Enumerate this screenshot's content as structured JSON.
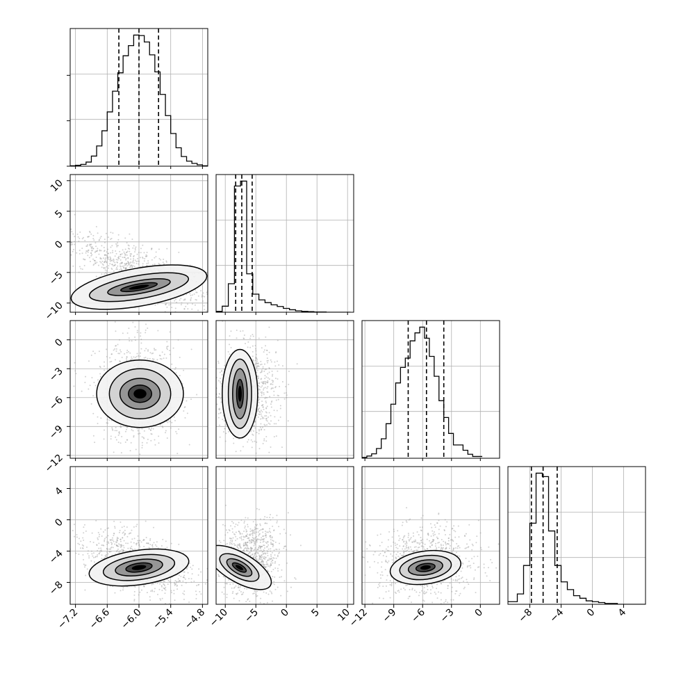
{
  "chart_data": {
    "type": "corner",
    "title": "",
    "parameters": [
      {
        "index": 0,
        "range": [
          -7.3,
          -4.7
        ],
        "ticks": [
          -7.2,
          -6.6,
          -6.0,
          -5.4,
          -4.8
        ],
        "tick_labels": [
          "−7.2",
          "−6.6",
          "−6.0",
          "−5.4",
          "−4.8"
        ],
        "quantiles": [
          -6.38,
          -6.0,
          -5.63
        ],
        "mode": -6.0
      },
      {
        "index": 1,
        "range": [
          -11.5,
          11.0
        ],
        "ticks": [
          -10,
          -5,
          0,
          5,
          10
        ],
        "tick_labels": [
          "−10",
          "−5",
          "0",
          "5",
          "10"
        ],
        "quantiles": [
          -8.3,
          -7.3,
          -5.6
        ],
        "mode": -7.5
      },
      {
        "index": 2,
        "range": [
          -12.3,
          2.0
        ],
        "ticks": [
          -12,
          -9,
          -6,
          -3,
          0
        ],
        "tick_labels": [
          "−12",
          "−9",
          "−6",
          "−3",
          "0"
        ],
        "quantiles": [
          -7.5,
          -5.6,
          -3.8
        ],
        "mode": -5.6
      },
      {
        "index": 3,
        "range": [
          -10.8,
          6.8
        ],
        "ticks": [
          -8,
          -4,
          0,
          4
        ],
        "tick_labels": [
          "−8",
          "−4",
          "0",
          "4"
        ],
        "quantiles": [
          -7.8,
          -6.3,
          -4.5
        ],
        "mode": -6.2
      }
    ],
    "histograms": [
      {
        "parameter": 0,
        "bin_edges": [
          -7.3,
          -7.2,
          -7.1,
          -7.0,
          -6.9,
          -6.8,
          -6.7,
          -6.6,
          -6.5,
          -6.4,
          -6.3,
          -6.2,
          -6.1,
          -6.0,
          -5.9,
          -5.8,
          -5.7,
          -5.6,
          -5.5,
          -5.4,
          -5.3,
          -5.2,
          -5.1,
          -5.0,
          -4.9,
          -4.8,
          -4.7
        ],
        "counts": [
          1,
          2,
          4,
          9,
          22,
          44,
          77,
          118,
          163,
          203,
          240,
          262,
          285,
          284,
          270,
          242,
          205,
          156,
          110,
          71,
          40,
          21,
          11,
          6,
          3,
          1
        ]
      },
      {
        "parameter": 1,
        "bin_edges": [
          -11.5,
          -10.5,
          -9.5,
          -8.5,
          -7.5,
          -6.5,
          -5.5,
          -4.5,
          -3.5,
          -2.5,
          -1.5,
          -0.5,
          0.5,
          1.5,
          2.5,
          3.5,
          4.5,
          5.5,
          6.5,
          7.5,
          8.5,
          9.5,
          10.5
        ],
        "counts": [
          3,
          22,
          104,
          460,
          478,
          140,
          66,
          45,
          35,
          27,
          21,
          14,
          9,
          5,
          3,
          2,
          1,
          1,
          0,
          0,
          0,
          0
        ]
      },
      {
        "parameter": 2,
        "bin_edges": [
          -12.3,
          -11.8,
          -11.3,
          -10.8,
          -10.3,
          -9.8,
          -9.3,
          -8.8,
          -8.3,
          -7.8,
          -7.3,
          -6.8,
          -6.3,
          -5.8,
          -5.3,
          -4.8,
          -4.3,
          -3.8,
          -3.3,
          -2.8,
          -1.8,
          -1.3,
          -0.8,
          0.2
        ],
        "counts": [
          2,
          5,
          10,
          22,
          44,
          78,
          122,
          170,
          205,
          226,
          265,
          283,
          296,
          271,
          230,
          185,
          130,
          92,
          56,
          30,
          18,
          9,
          4
        ]
      },
      {
        "parameter": 3,
        "bin_edges": [
          -10.8,
          -9.6,
          -8.8,
          -8.0,
          -7.2,
          -6.4,
          -5.6,
          -4.8,
          -4.0,
          -3.2,
          -2.4,
          -1.6,
          -0.8,
          0.0,
          0.8,
          1.6,
          2.4,
          3.2,
          4.0,
          6.8
        ],
        "counts": [
          3,
          12,
          45,
          94,
          152,
          148,
          85,
          45,
          26,
          17,
          10,
          7,
          4,
          3,
          2,
          1,
          1,
          0,
          0
        ]
      }
    ],
    "joint_densities": [
      {
        "x_param": 0,
        "y_param": 1,
        "peak": [
          -6.0,
          -7.4
        ],
        "sigma": [
          0.32,
          0.9
        ],
        "rotation": 10,
        "scatter_spread": [
          0.45,
          3.2
        ],
        "scatter_center": [
          -6.0,
          -5.0
        ],
        "contour_levels": [
          [
            0.35,
            0.52
          ],
          [
            0.6,
            1.05
          ],
          [
            0.95,
            1.9
          ],
          [
            1.3,
            3.1
          ]
        ]
      },
      {
        "x_param": 0,
        "y_param": 2,
        "peak": [
          -5.98,
          -5.6
        ],
        "sigma": [
          0.3,
          2.0
        ],
        "rotation": 0,
        "scatter_spread": [
          0.4,
          2.6
        ],
        "scatter_center": [
          -6.0,
          -5.5
        ],
        "contour_levels": [
          [
            0.22,
            0.9
          ],
          [
            0.38,
            1.6
          ],
          [
            0.58,
            2.6
          ],
          [
            0.82,
            3.5
          ]
        ]
      },
      {
        "x_param": 1,
        "y_param": 2,
        "peak": [
          -7.6,
          -5.6
        ],
        "sigma": [
          0.8,
          2.0
        ],
        "rotation": 0,
        "scatter_spread": [
          2.5,
          2.5
        ],
        "scatter_center": [
          -6.5,
          -5.5
        ],
        "contour_levels": [
          [
            0.55,
            1.5
          ],
          [
            1.2,
            2.6
          ],
          [
            1.9,
            3.6
          ],
          [
            2.9,
            4.6
          ]
        ]
      },
      {
        "x_param": 0,
        "y_param": 3,
        "peak": [
          -6.0,
          -6.1
        ],
        "sigma": [
          0.3,
          1.0
        ],
        "rotation": 8,
        "scatter_spread": [
          0.45,
          2.2
        ],
        "scatter_center": [
          -6.0,
          -5.5
        ],
        "contour_levels": [
          [
            0.25,
            0.55
          ],
          [
            0.45,
            1.0
          ],
          [
            0.68,
            1.55
          ],
          [
            0.95,
            2.2
          ]
        ]
      },
      {
        "x_param": 1,
        "y_param": 3,
        "peak": [
          -7.7,
          -6.1
        ],
        "sigma": [
          0.8,
          1.6
        ],
        "rotation": 60,
        "scatter_spread": [
          2.5,
          2.5
        ],
        "scatter_center": [
          -6.0,
          -5.0
        ],
        "contour_levels": [
          [
            0.5,
            1.0
          ],
          [
            1.0,
            1.8
          ],
          [
            1.6,
            2.8
          ],
          [
            2.4,
            4.6
          ]
        ]
      },
      {
        "x_param": 2,
        "y_param": 3,
        "peak": [
          -5.7,
          -6.1
        ],
        "sigma": [
          1.8,
          1.0
        ],
        "rotation": 8,
        "scatter_spread": [
          2.6,
          2.2
        ],
        "scatter_center": [
          -5.6,
          -5.5
        ],
        "contour_levels": [
          [
            1.0,
            0.5
          ],
          [
            1.8,
            0.95
          ],
          [
            2.7,
            1.5
          ],
          [
            3.7,
            2.1
          ]
        ]
      }
    ]
  }
}
